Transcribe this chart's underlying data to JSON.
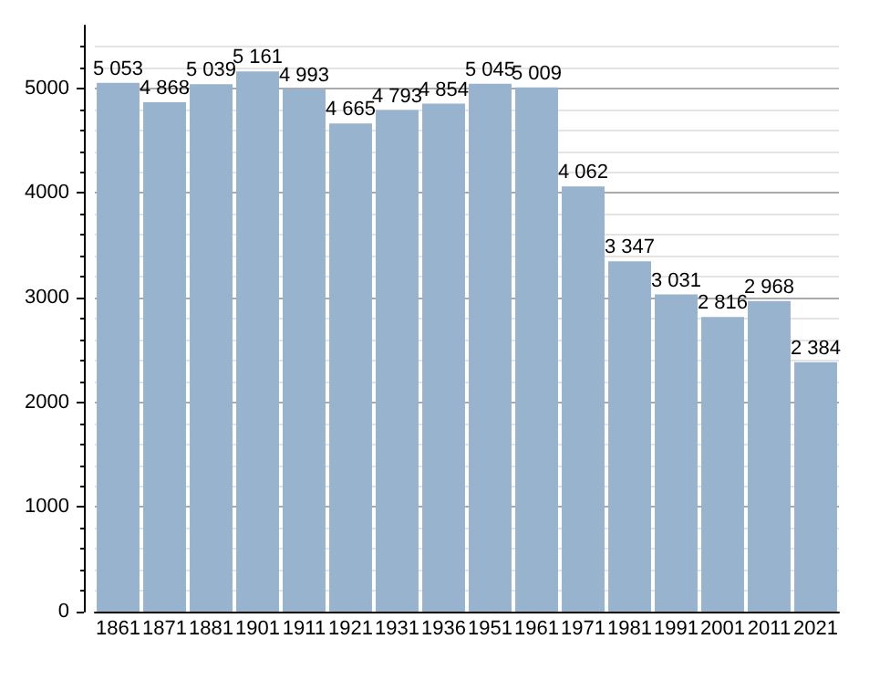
{
  "chart_data": {
    "type": "bar",
    "categories": [
      "1861",
      "1871",
      "1881",
      "1901",
      "1911",
      "1921",
      "1931",
      "1936",
      "1951",
      "1961",
      "1971",
      "1981",
      "1991",
      "2001",
      "2011",
      "2021"
    ],
    "values": [
      5053,
      4868,
      5039,
      5161,
      4993,
      4665,
      4793,
      4854,
      5045,
      5009,
      4062,
      3347,
      3031,
      2816,
      2968,
      2384
    ],
    "value_labels": [
      "5 053",
      "4 868",
      "5 039",
      "5 161",
      "4 993",
      "4 665",
      "4 793",
      "4 854",
      "5 045",
      "5 009",
      "4 062",
      "3 347",
      "3 031",
      "2 816",
      "2 968",
      "2 384"
    ],
    "color": "#98b3cd",
    "ylim": [
      0,
      5600
    ],
    "yticks": [
      0,
      1000,
      2000,
      3000,
      4000,
      5000
    ],
    "grid": true
  }
}
